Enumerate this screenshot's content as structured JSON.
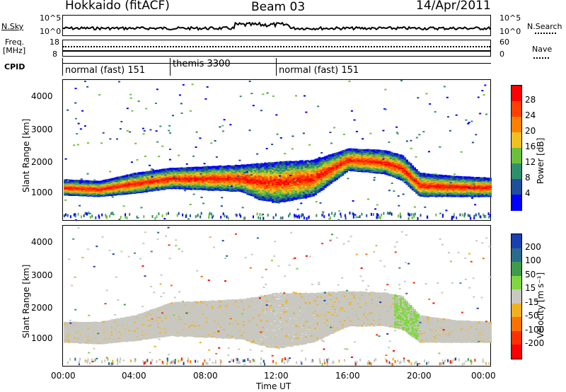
{
  "header": {
    "radar": "Hokkaido (fitACF)",
    "beam": "Beam 03",
    "date": "14/Apr/2011"
  },
  "top_strips": {
    "nsky_label": "N.Sky",
    "nsky_ticks": [
      "10^5",
      "10^0"
    ],
    "nsearch_label": "N.Search",
    "nsearch_ticks": [
      "10^5",
      "10^0"
    ],
    "freq_label_1": "Freq.",
    "freq_label_2": "[MHz]",
    "freq_ticks": [
      "18",
      "8"
    ],
    "nave_label": "Nave",
    "nave_ticks": [
      "60",
      "0"
    ],
    "cpid_label": "CPID",
    "cpid_segments": [
      {
        "label": "normal (fast) 151",
        "start": 0,
        "end": 6
      },
      {
        "label": "themis 3300",
        "start": 6,
        "end": 12
      },
      {
        "label": "normal (fast) 151",
        "start": 12,
        "end": 24
      }
    ]
  },
  "time_axis": {
    "ticks": [
      "00:00",
      "04:00",
      "08:00",
      "12:00",
      "16:00",
      "20:00",
      "00:00"
    ],
    "label": "Time UT",
    "range_hours": [
      0,
      24
    ]
  },
  "chart_data": [
    {
      "type": "heatmap",
      "parameter": "Power",
      "ylabel": "Slant Range [km]",
      "xlabel": "",
      "ylim": [
        200,
        4500
      ],
      "yticks": [
        "1000",
        "2000",
        "3000",
        "4000"
      ],
      "colorbar": {
        "label": "Power [dB]",
        "ticks": [
          "4",
          "8",
          "12",
          "16",
          "20",
          "24",
          "28"
        ],
        "colors": [
          "#0000ff",
          "#1f4e9a",
          "#2f8f6a",
          "#6cbf3a",
          "#f0c020",
          "#ff8000",
          "#ff4000",
          "#ff0000"
        ]
      },
      "main_band": {
        "x": [
          0,
          2,
          4,
          6,
          8,
          10,
          11,
          12,
          14,
          16,
          18,
          19,
          20,
          22,
          24
        ],
        "range_low": [
          950,
          900,
          1000,
          1150,
          1100,
          1050,
          800,
          700,
          900,
          1700,
          1600,
          1400,
          900,
          900,
          900
        ],
        "range_high": [
          1400,
          1350,
          1600,
          1750,
          1800,
          1850,
          1900,
          1950,
          2000,
          2350,
          2300,
          2150,
          1600,
          1500,
          1450
        ]
      }
    },
    {
      "type": "heatmap",
      "parameter": "Velocity",
      "ylabel": "Slant Range [km]",
      "xlabel": "Time UT",
      "ylim": [
        200,
        4500
      ],
      "yticks": [
        "1000",
        "2000",
        "3000",
        "4000"
      ],
      "colorbar": {
        "label": "Velocity [m s⁻¹]",
        "ticks": [
          "200",
          "100",
          "50",
          "15",
          "-15",
          "-50",
          "-100",
          "-200"
        ],
        "colors": [
          "#1a3fb0",
          "#2a6a8a",
          "#3f9a4a",
          "#7fd640",
          "#c8c8c0",
          "#f0b020",
          "#ff7000",
          "#ff3000",
          "#ff0000"
        ]
      },
      "main_band": {
        "x": [
          0,
          2,
          4,
          6,
          8,
          10,
          11,
          12,
          14,
          16,
          18,
          19,
          20,
          22,
          24
        ],
        "range_low": [
          900,
          850,
          950,
          1100,
          1050,
          1000,
          800,
          700,
          900,
          1400,
          1400,
          1300,
          900,
          900,
          900
        ],
        "range_high": [
          1500,
          1500,
          1700,
          2100,
          2150,
          2200,
          2300,
          2400,
          2400,
          2450,
          2400,
          2300,
          1700,
          1550,
          1500
        ]
      }
    }
  ]
}
